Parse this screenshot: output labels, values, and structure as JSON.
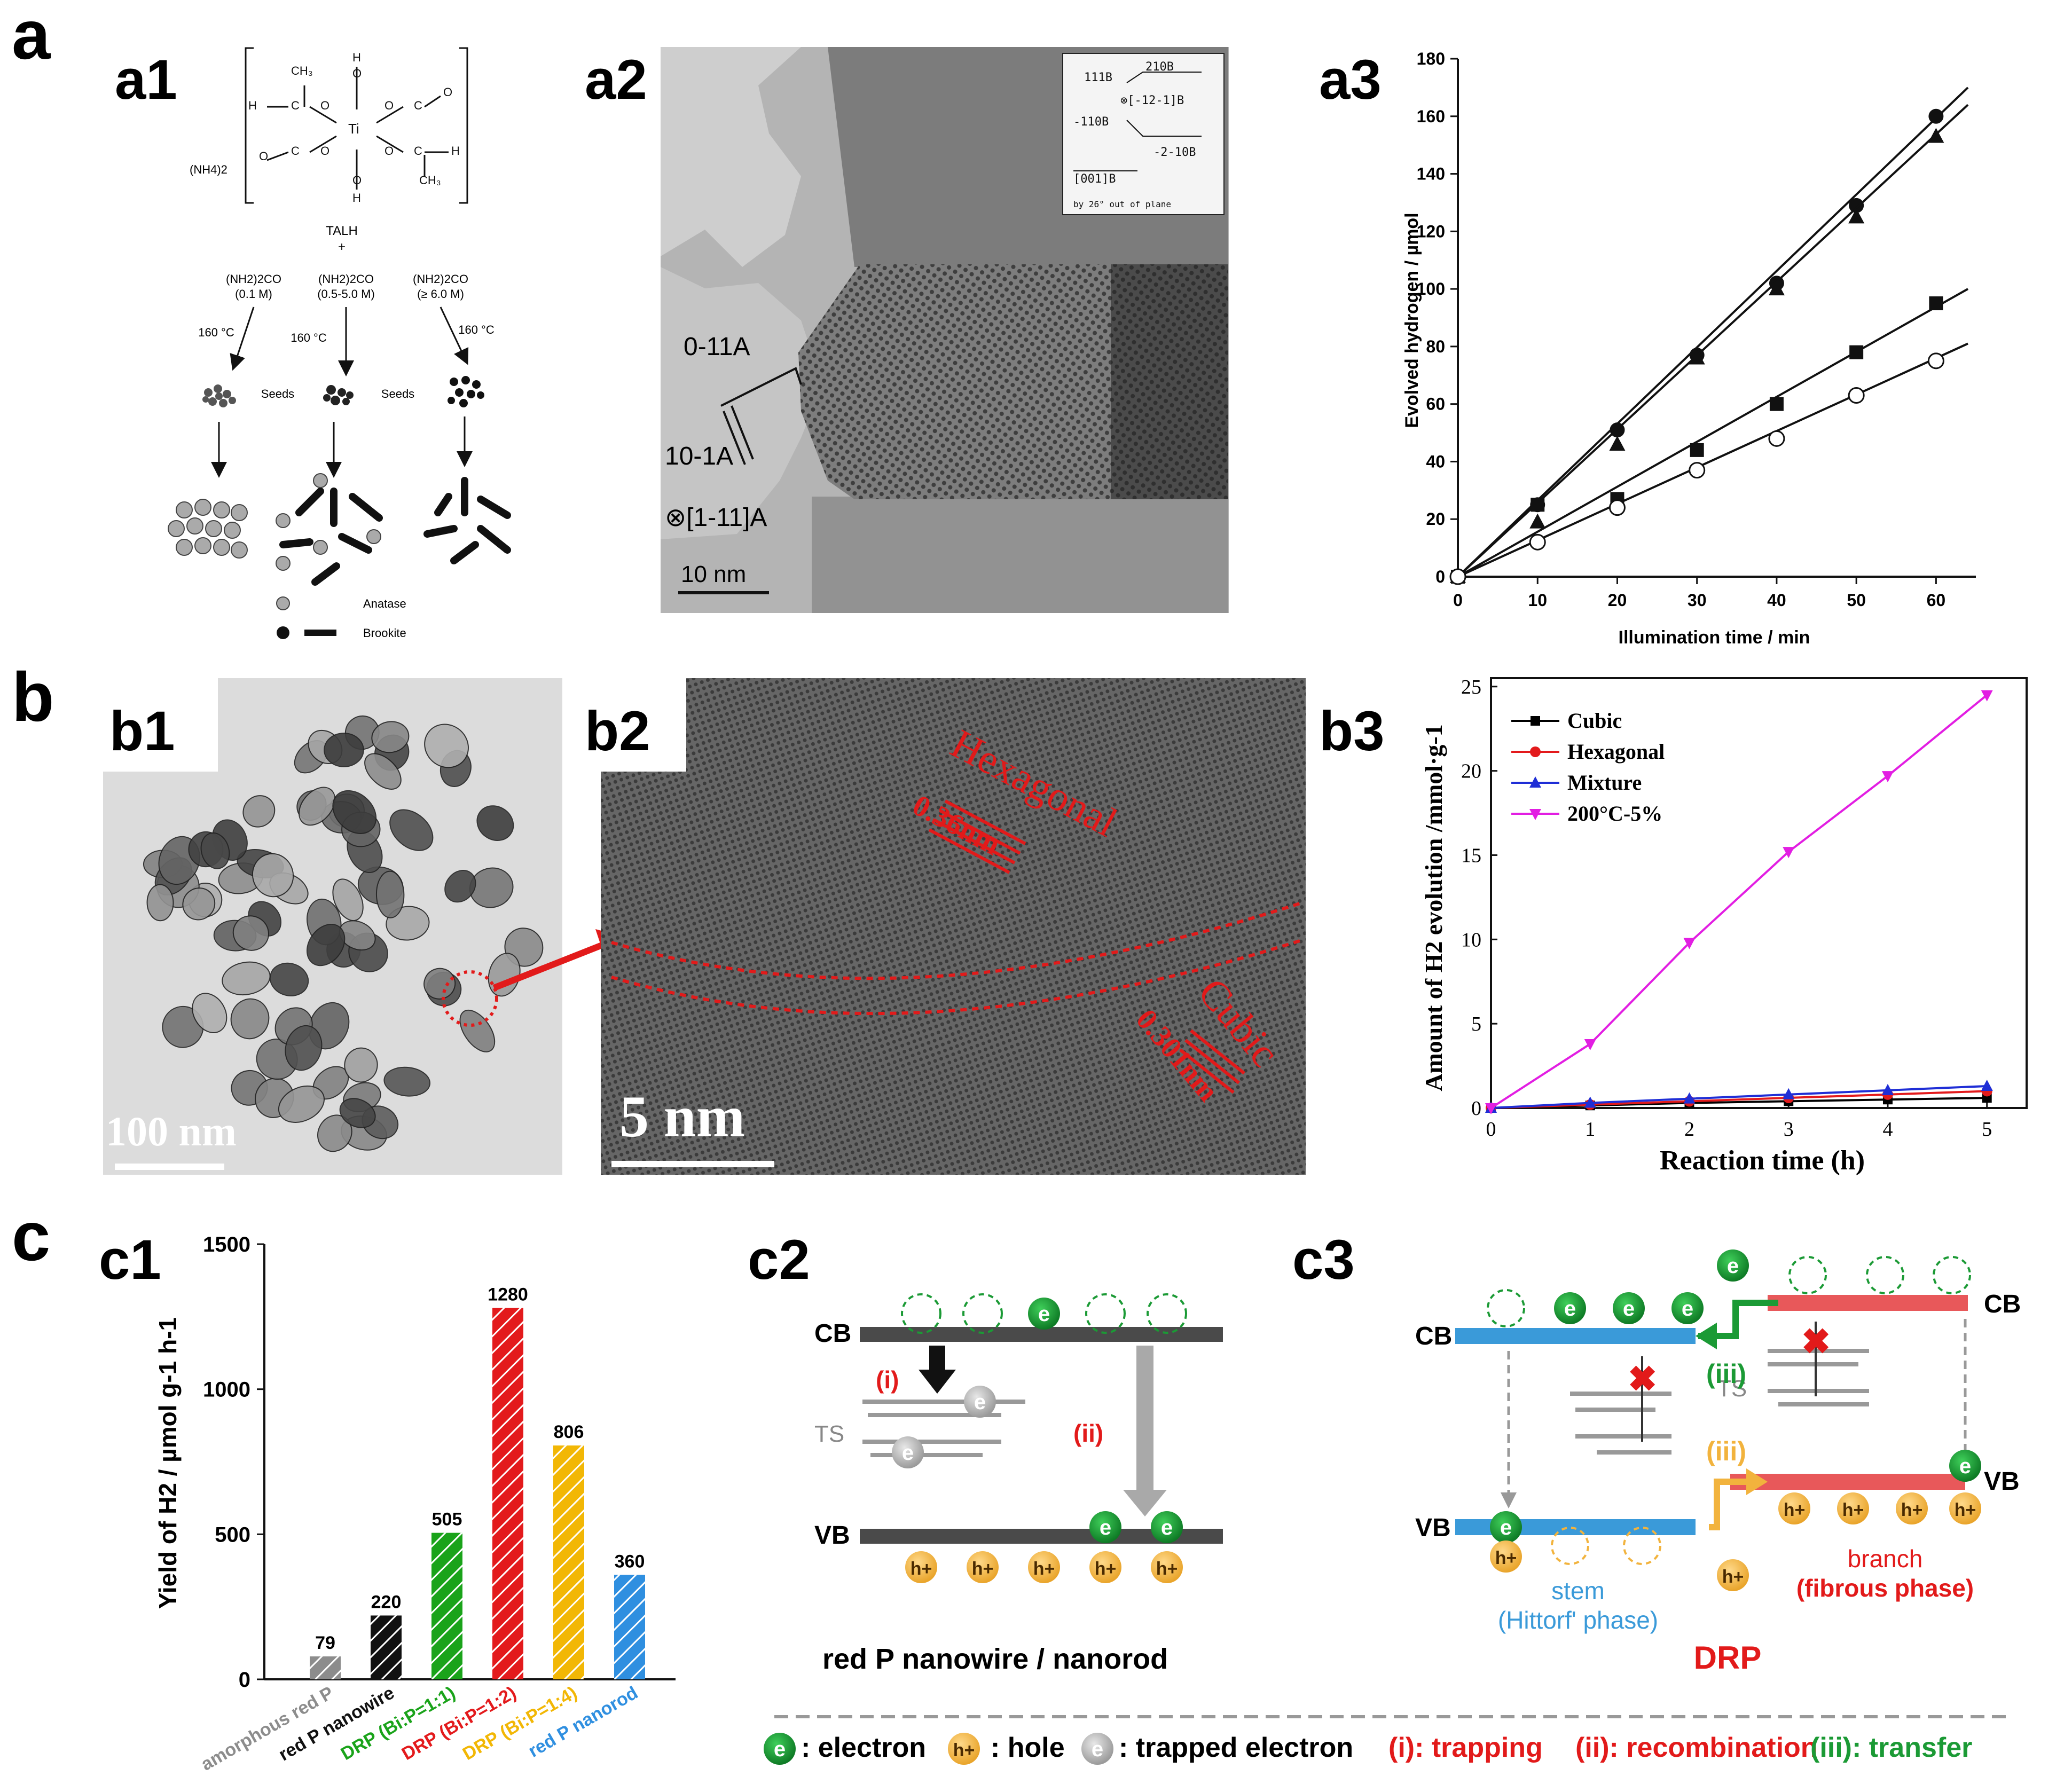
{
  "panels": {
    "a": "a",
    "b": "b",
    "c": "c",
    "a1": "a1",
    "a2": "a2",
    "a3": "a3",
    "b1": "b1",
    "b2": "b2",
    "b3": "b3",
    "c1": "c1",
    "c2": "c2",
    "c3": "c3"
  },
  "a1": {
    "prefix": "(NH4)2",
    "talh": "TALH",
    "plus": "+",
    "urea": [
      {
        "label": "(NH2)2CO",
        "conc": "(0.1 M)",
        "temp": "160 °C",
        "seed": "Seeds"
      },
      {
        "label": "(NH2)2CO",
        "conc": "(0.5-5.0 M)",
        "temp": "160 °C",
        "seed": "Seeds"
      },
      {
        "label": "(NH2)2CO",
        "conc": "(≥ 6.0 M)",
        "temp": "160 °C",
        "seed": ""
      }
    ],
    "legend": [
      "Anatase",
      "Brookite"
    ]
  },
  "a2": {
    "labels": [
      "0-11A",
      "10-1A",
      "⊗[1-11]A"
    ],
    "scale": "10 nm",
    "inset": [
      "210B",
      "111B",
      "⊗[-12-1]B",
      "-110B",
      "-2-10B",
      "[001]B",
      "by 26° out of plane"
    ]
  },
  "a3_chart": {
    "type": "line",
    "ylabel": "Evolved hydrogen / µmol",
    "xlabel": "Illumination time / min",
    "xticks": [
      "0",
      "10",
      "20",
      "30",
      "40",
      "50",
      "60"
    ],
    "yticks": [
      "0",
      "20",
      "40",
      "60",
      "80",
      "100",
      "120",
      "140",
      "160",
      "180"
    ],
    "xlim": [
      0,
      65
    ],
    "ylim": [
      0,
      180
    ]
  },
  "b1": {
    "scale": "100 nm"
  },
  "b2": {
    "scale": "5 nm",
    "hex": "Hexagonal",
    "hex_d": "0.36nm",
    "cub": "Cubic",
    "cub_d": "0.301nm"
  },
  "b3_chart": {
    "type": "line",
    "ylabel": "Amount of H2 evolution /mmol·g-1",
    "xlabel": "Reaction time (h)",
    "xticks": [
      "0",
      "1",
      "2",
      "3",
      "4",
      "5"
    ],
    "yticks": [
      "0",
      "5",
      "10",
      "15",
      "20",
      "25"
    ],
    "xlim": [
      0,
      5.4
    ],
    "ylim": [
      0,
      25.5
    ],
    "legend": [
      "Cubic",
      "Hexagonal",
      "Mixture",
      "200°C-5%"
    ]
  },
  "chart_data": [
    {
      "type": "line",
      "title": "a3",
      "xlabel": "Illumination time / min",
      "ylabel": "Evolved hydrogen / µmol",
      "xlim": [
        0,
        65
      ],
      "ylim": [
        0,
        180
      ],
      "x": [
        0,
        10,
        20,
        30,
        40,
        50,
        60
      ],
      "series": [
        {
          "name": "filled circle",
          "marker": "circle-filled",
          "values": [
            0,
            25,
            51,
            77,
            102,
            129,
            160
          ],
          "fit_end": 170
        },
        {
          "name": "filled triangle",
          "marker": "triangle-filled",
          "values": [
            0,
            19,
            46,
            76,
            100,
            125,
            153
          ],
          "fit_end": 164
        },
        {
          "name": "filled square",
          "marker": "square-filled",
          "values": [
            0,
            25,
            27,
            44,
            60,
            78,
            95
          ],
          "fit_end": 100
        },
        {
          "name": "open circle",
          "marker": "circle-open",
          "values": [
            0,
            12,
            24,
            37,
            48,
            63,
            75
          ],
          "fit_end": 81
        }
      ]
    },
    {
      "type": "line",
      "title": "b3",
      "xlabel": "Reaction time (h)",
      "ylabel": "Amount of H2 evolution /mmol·g-1",
      "xlim": [
        0,
        5.4
      ],
      "ylim": [
        0,
        25.5
      ],
      "x": [
        0,
        1,
        2,
        3,
        4,
        5
      ],
      "series": [
        {
          "name": "Cubic",
          "color": "#000000",
          "marker": "square",
          "values": [
            0,
            0.15,
            0.3,
            0.4,
            0.5,
            0.6
          ]
        },
        {
          "name": "Hexagonal",
          "color": "#e31a1c",
          "marker": "circle",
          "values": [
            0,
            0.2,
            0.4,
            0.6,
            0.8,
            1.0
          ]
        },
        {
          "name": "Mixture",
          "color": "#1f2ed6",
          "marker": "triangle",
          "values": [
            0,
            0.3,
            0.55,
            0.8,
            1.05,
            1.3
          ]
        },
        {
          "name": "200°C-5%",
          "color": "#e21ee2",
          "marker": "triangle-down",
          "values": [
            0,
            3.8,
            9.8,
            15.2,
            19.7,
            24.5
          ]
        }
      ]
    },
    {
      "type": "bar",
      "title": "c1",
      "ylabel": "Yield of H2 / µmol g-1 h-1",
      "ylim": [
        0,
        1500
      ],
      "yticks": [
        "0",
        "500",
        "1000",
        "1500"
      ],
      "categories": [
        "amorphous red P",
        "red P nanowire",
        "DRP (Bi:P=1:1)",
        "DRP (Bi:P=1:2)",
        "DRP (Bi:P=1:4)",
        "red P nanorod"
      ],
      "values": [
        79,
        220,
        505,
        1280,
        806,
        360
      ],
      "value_labels": [
        "79",
        "220",
        "505",
        "1280",
        "806",
        "360"
      ],
      "colors": [
        "#8c8c8c",
        "#111111",
        "#1aa31a",
        "#e31a1c",
        "#f2b705",
        "#2f8fe0"
      ]
    }
  ],
  "c2": {
    "cb": "CB",
    "vb": "VB",
    "ts": "TS",
    "i": "(i)",
    "ii": "(ii)",
    "e": "e",
    "h": "h+",
    "caption": "red P nanowire / nanorod"
  },
  "c3": {
    "cb": "CB",
    "vb": "VB",
    "ts": "TS",
    "iii": "(iii)",
    "e": "e",
    "h": "h+",
    "stem": "stem",
    "stem2": "(Hittorf' phase)",
    "branch": "branch",
    "branch2": "(fibrous phase)",
    "drp": "DRP"
  },
  "legend_c": {
    "electron": ": electron",
    "hole": ": hole",
    "trapped": ": trapped electron",
    "trapping": "(i): trapping",
    "recomb": "(ii): recombination",
    "transfer": "(iii): transfer"
  },
  "colors": {
    "stem_blue": "#3a9ad9",
    "branch_red": "#e8585a",
    "green": "#1b9a35",
    "orange": "#f2b33d",
    "red": "#e21a1a",
    "magenta": "#e21ee2"
  }
}
